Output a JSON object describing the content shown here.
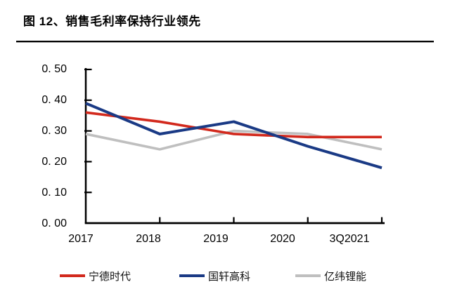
{
  "figure": {
    "title": "图 12、销售毛利率保持行业领先"
  },
  "chart_data": {
    "type": "line",
    "title": "销售毛利率保持行业领先",
    "categories": [
      "2017",
      "2018",
      "2019",
      "2020",
      "3Q2021"
    ],
    "series": [
      {
        "name": "宁德时代",
        "color": "#d2291d",
        "values": [
          0.36,
          0.33,
          0.29,
          0.28,
          0.28
        ]
      },
      {
        "name": "国轩高科",
        "color": "#1a3a85",
        "values": [
          0.39,
          0.29,
          0.33,
          0.25,
          0.18
        ]
      },
      {
        "name": "亿纬锂能",
        "color": "#bfbfbf",
        "values": [
          0.29,
          0.24,
          0.3,
          0.29,
          0.24
        ]
      }
    ],
    "ylim": [
      0,
      0.5
    ],
    "y_tick_step": 0.1,
    "y_tick_labels": [
      "0. 50",
      "0. 40",
      "0. 30",
      "0. 20",
      "0. 10",
      "0. 00"
    ],
    "grid": false,
    "legend_position": "bottom",
    "axis_color": "#000000"
  }
}
